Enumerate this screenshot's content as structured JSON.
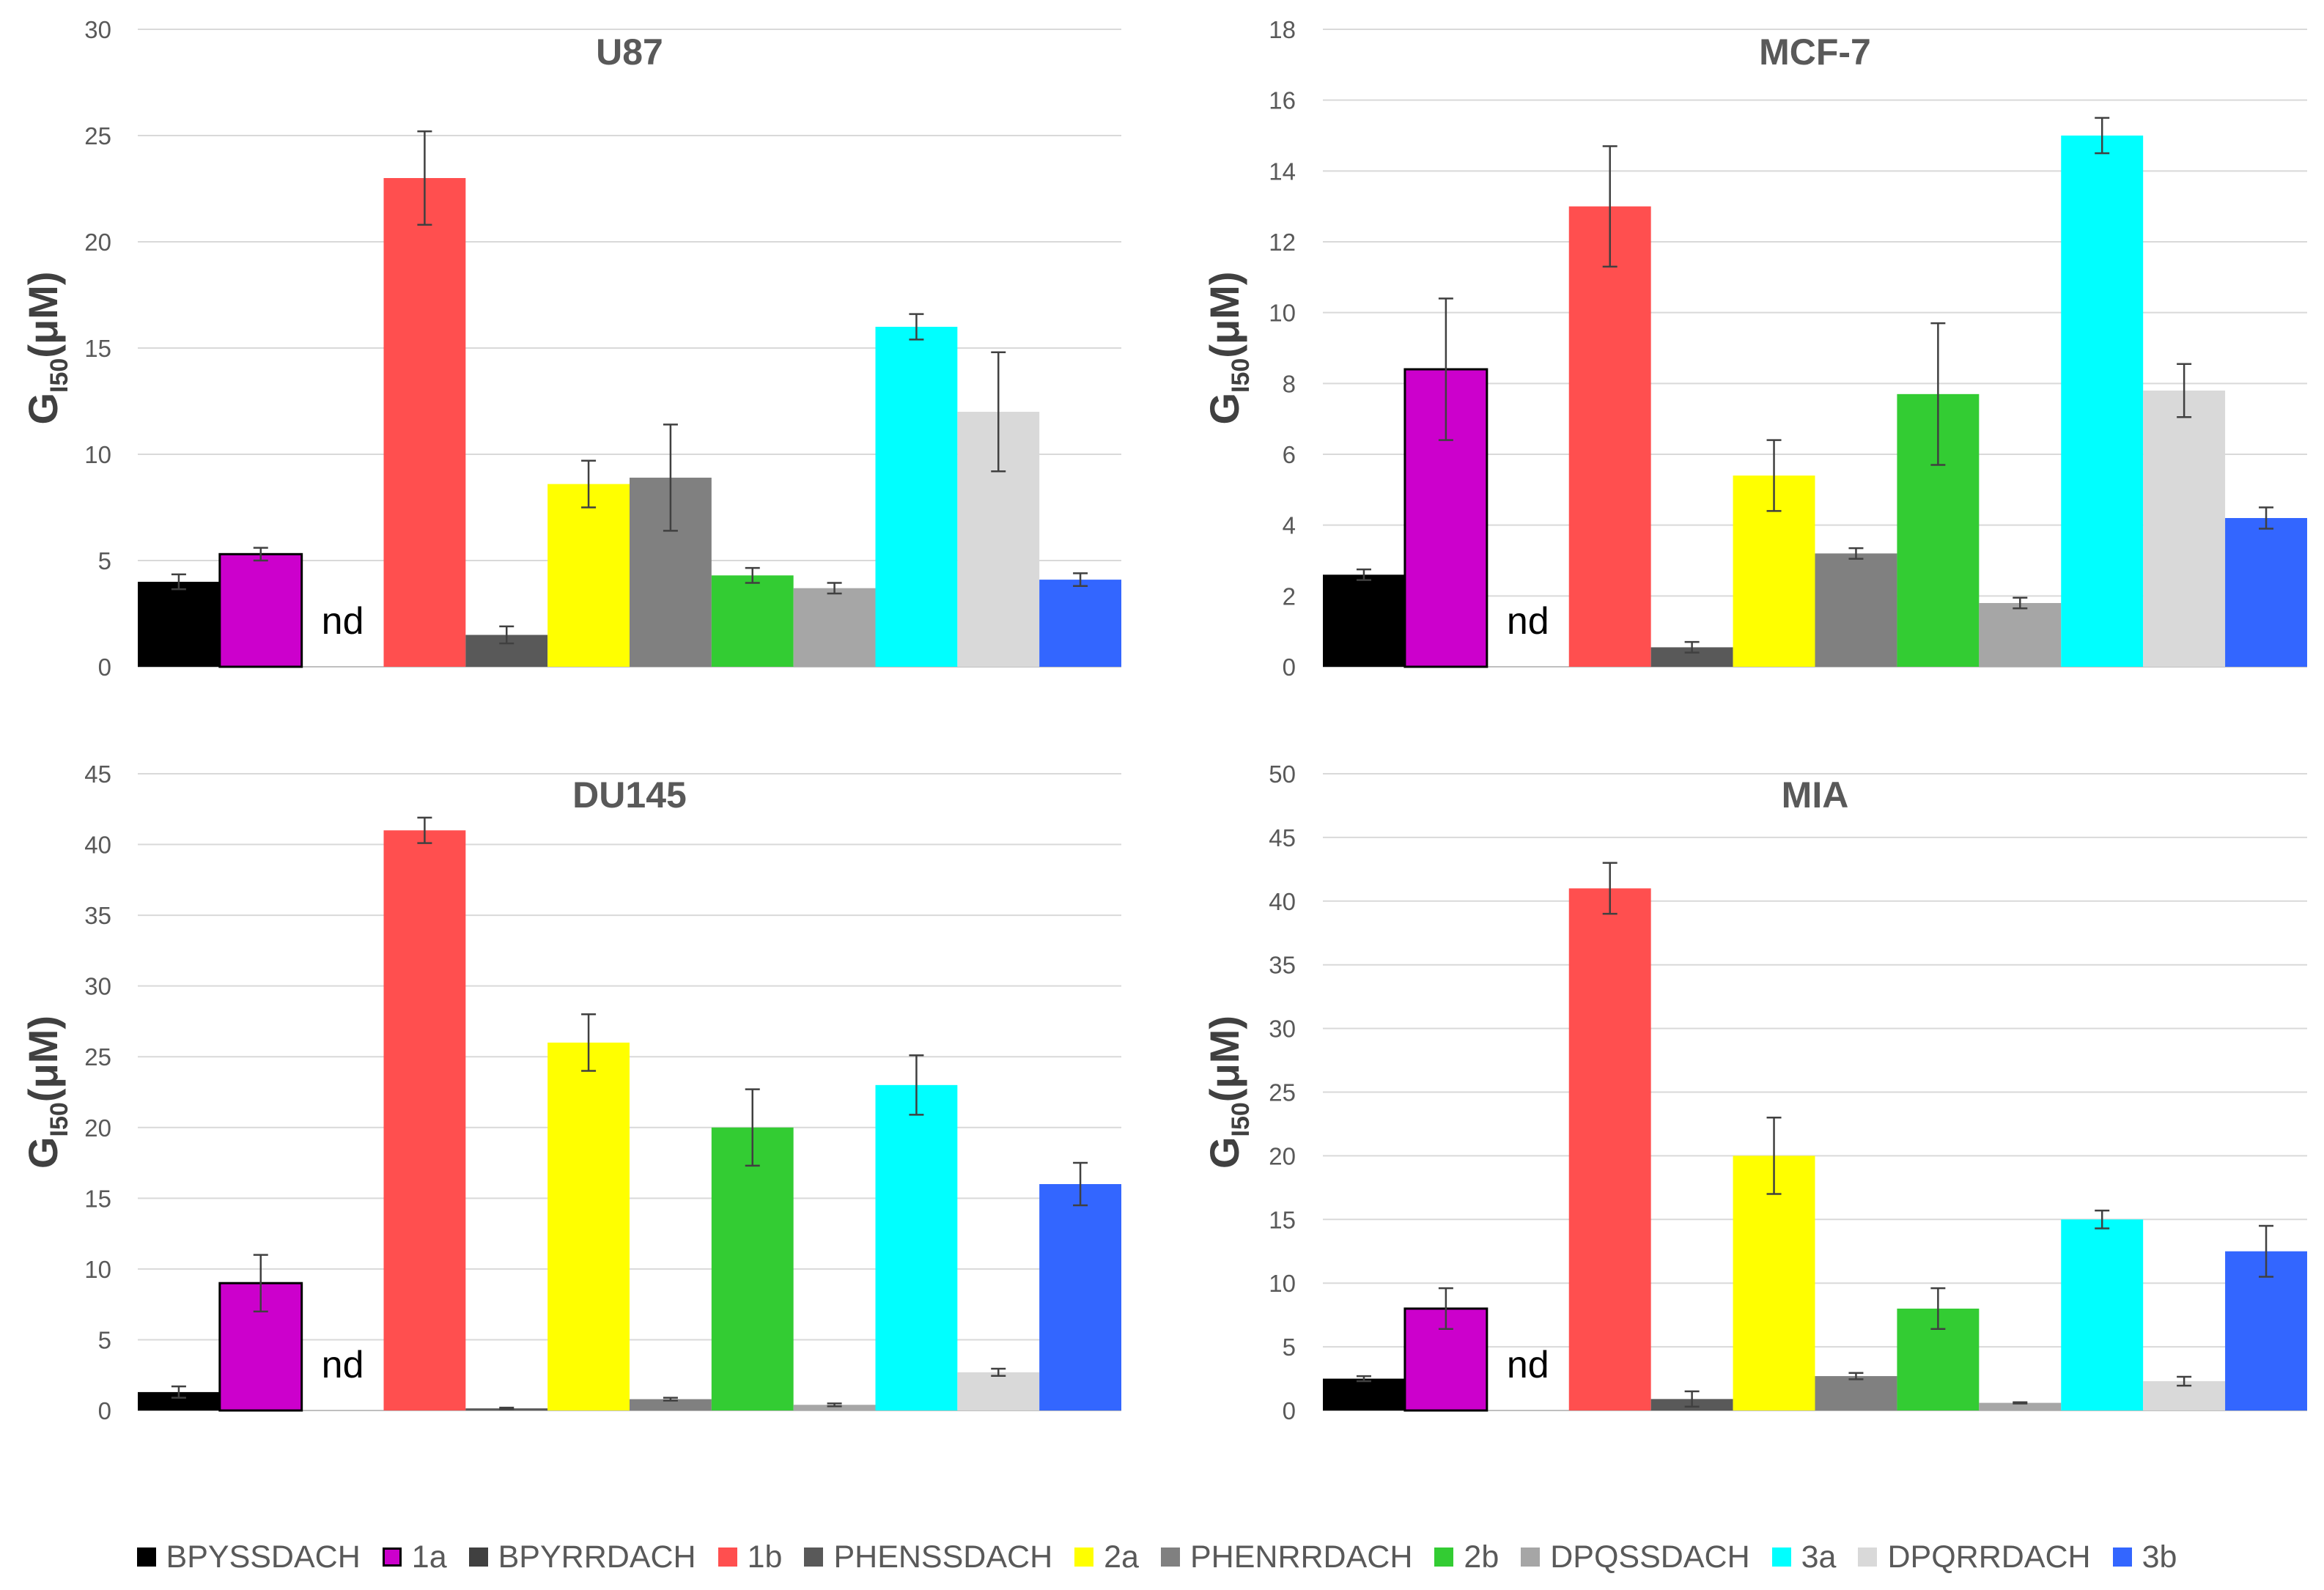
{
  "ylabel_main": "G",
  "ylabel_sub": "I50",
  "ylabel_unit": "(μM)",
  "nd_label": "nd",
  "series": [
    {
      "name": "BPYSSDACH",
      "color": "#000000"
    },
    {
      "name": "1a",
      "color": "#cc00cc",
      "outline": "#000000"
    },
    {
      "name": "BPYRRDACH",
      "color": "#404040"
    },
    {
      "name": "1b",
      "color": "#ff4f4f"
    },
    {
      "name": "PHENSSDACH",
      "color": "#595959"
    },
    {
      "name": "2a",
      "color": "#ffff00"
    },
    {
      "name": "PHENRRDACH",
      "color": "#808080"
    },
    {
      "name": "2b",
      "color": "#33cc33"
    },
    {
      "name": "DPQSSDACH",
      "color": "#a6a6a6"
    },
    {
      "name": "3a",
      "color": "#00ffff"
    },
    {
      "name": "DPQRRDACH",
      "color": "#d9d9d9"
    },
    {
      "name": "3b",
      "color": "#3366ff"
    }
  ],
  "chart_data": [
    {
      "type": "bar",
      "title": "U87",
      "ylim": [
        0,
        30
      ],
      "yticks": [
        0,
        5,
        10,
        15,
        20,
        25,
        30
      ],
      "values": [
        4.0,
        5.3,
        null,
        23.0,
        1.5,
        8.6,
        8.9,
        4.3,
        3.7,
        16.0,
        12.0,
        4.1
      ],
      "errors": [
        0.35,
        0.3,
        null,
        2.2,
        0.4,
        1.1,
        2.5,
        0.35,
        0.25,
        0.6,
        2.8,
        0.3
      ]
    },
    {
      "type": "bar",
      "title": "MCF-7",
      "ylim": [
        0,
        18
      ],
      "yticks": [
        0,
        2,
        4,
        6,
        8,
        10,
        12,
        14,
        16,
        18
      ],
      "values": [
        2.6,
        8.4,
        null,
        13.0,
        0.55,
        5.4,
        3.2,
        7.7,
        1.8,
        15.0,
        7.8,
        4.2
      ],
      "errors": [
        0.15,
        2.0,
        null,
        1.7,
        0.15,
        1.0,
        0.15,
        2.0,
        0.15,
        0.5,
        0.75,
        0.3
      ]
    },
    {
      "type": "bar",
      "title": "DU145",
      "ylim": [
        0,
        45
      ],
      "yticks": [
        0,
        5,
        10,
        15,
        20,
        25,
        30,
        35,
        40,
        45
      ],
      "values": [
        1.3,
        9.0,
        null,
        41.0,
        0.15,
        26.0,
        0.8,
        20.0,
        0.4,
        23.0,
        2.7,
        16.0
      ],
      "errors": [
        0.4,
        2.0,
        null,
        0.9,
        0.05,
        2.0,
        0.1,
        2.7,
        0.1,
        2.1,
        0.25,
        1.5
      ]
    },
    {
      "type": "bar",
      "title": "MIA",
      "ylim": [
        0,
        50
      ],
      "yticks": [
        0,
        5,
        10,
        15,
        20,
        25,
        30,
        35,
        40,
        45,
        50
      ],
      "values": [
        2.5,
        8.0,
        null,
        41.0,
        0.9,
        20.0,
        2.7,
        8.0,
        0.6,
        15.0,
        2.3,
        12.5
      ],
      "errors": [
        0.2,
        1.6,
        null,
        2.0,
        0.6,
        3.0,
        0.25,
        1.6,
        0.05,
        0.7,
        0.35,
        2.0
      ]
    }
  ]
}
